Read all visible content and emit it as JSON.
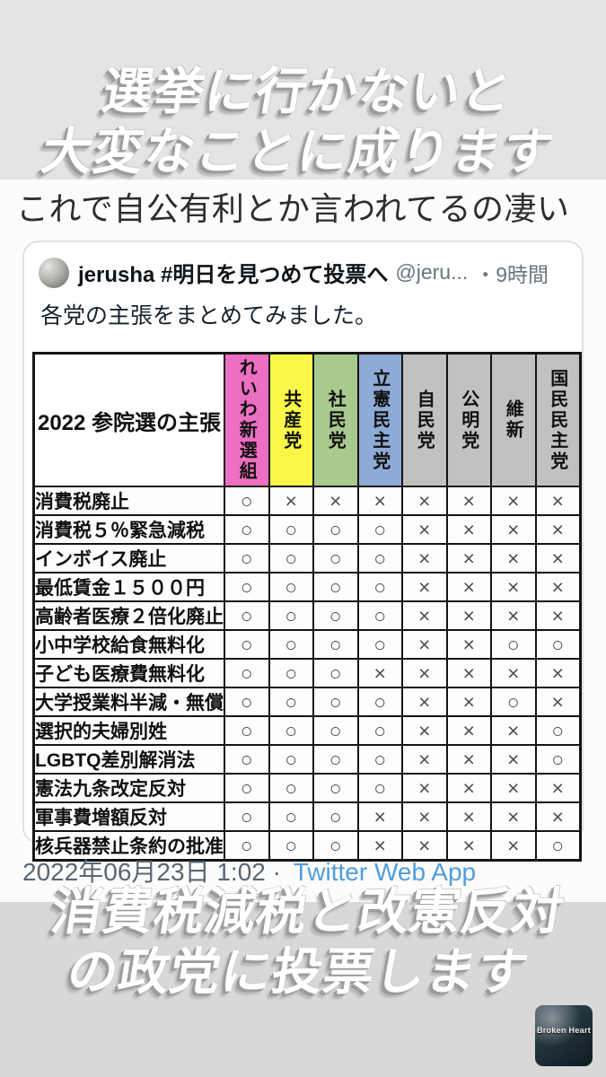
{
  "overlay_top": {
    "line1": "選挙に行かないと",
    "line2": "大変なことに成ります"
  },
  "caption": "これで自公有利とか言われてるの凄い",
  "tweet": {
    "display_name": "jerusha #明日を見つめて投票へ",
    "handle": "@jeru...",
    "timestamp": "・9時間",
    "body": "各党の主張をまとめてみました。",
    "avatar_name": "jerusha-avatar"
  },
  "table": {
    "corner": "2022 参院選の主張",
    "mark_yes": "○",
    "mark_no": "×",
    "parties": [
      {
        "label": "れいわ新選組",
        "color": "#ed6fc2"
      },
      {
        "label": "共産党",
        "color": "#f8f747"
      },
      {
        "label": "社民党",
        "color": "#a9ca8e"
      },
      {
        "label": "立憲民主党",
        "color": "#8eaad6"
      },
      {
        "label": "自民党",
        "color": "#c1c1c1"
      },
      {
        "label": "公明党",
        "color": "#c1c1c1"
      },
      {
        "label": "維新",
        "color": "#c1c1c1"
      },
      {
        "label": "国民民主党",
        "color": "#c1c1c1"
      }
    ],
    "rows": [
      {
        "label": "消費税廃止",
        "marks": [
          "○",
          "×",
          "×",
          "×",
          "×",
          "×",
          "×",
          "×"
        ]
      },
      {
        "label": "消費税５％緊急減税",
        "marks": [
          "○",
          "○",
          "○",
          "○",
          "×",
          "×",
          "×",
          "×"
        ]
      },
      {
        "label": "インボイス廃止",
        "marks": [
          "○",
          "○",
          "○",
          "○",
          "×",
          "×",
          "×",
          "×"
        ]
      },
      {
        "label": "最低賃金１５００円",
        "marks": [
          "○",
          "○",
          "○",
          "○",
          "×",
          "×",
          "×",
          "×"
        ]
      },
      {
        "label": "高齢者医療２倍化廃止",
        "marks": [
          "○",
          "○",
          "○",
          "○",
          "×",
          "×",
          "×",
          "×"
        ]
      },
      {
        "label": "小中学校給食無料化",
        "marks": [
          "○",
          "○",
          "○",
          "○",
          "×",
          "×",
          "○",
          "○"
        ]
      },
      {
        "label": "子ども医療費無料化",
        "marks": [
          "○",
          "○",
          "○",
          "×",
          "×",
          "×",
          "×",
          "×"
        ]
      },
      {
        "label": "大学授業料半減・無償",
        "marks": [
          "○",
          "○",
          "○",
          "○",
          "×",
          "×",
          "○",
          "×"
        ]
      },
      {
        "label": "選択的夫婦別姓",
        "marks": [
          "○",
          "○",
          "○",
          "○",
          "×",
          "×",
          "×",
          "○"
        ]
      },
      {
        "label": "LGBTQ差別解消法",
        "marks": [
          "○",
          "○",
          "○",
          "○",
          "×",
          "×",
          "×",
          "○"
        ]
      },
      {
        "label": "憲法九条改定反対",
        "marks": [
          "○",
          "○",
          "○",
          "○",
          "×",
          "×",
          "×",
          "×"
        ]
      },
      {
        "label": "軍事費増額反対",
        "marks": [
          "○",
          "○",
          "○",
          "×",
          "×",
          "×",
          "×",
          "×"
        ]
      },
      {
        "label": "核兵器禁止条約の批准",
        "marks": [
          "○",
          "○",
          "○",
          "×",
          "×",
          "×",
          "×",
          "○"
        ]
      }
    ]
  },
  "footer": {
    "date": "2022年06月23日 1:02",
    "separator": "·",
    "source": "Twitter Web App",
    "source_color": "#4f9ddb"
  },
  "overlay_bottom": {
    "line1": "消費税減税と改憲反対",
    "line2": "の政党に投票します"
  },
  "watermark": {
    "text": "Broken Heart"
  }
}
